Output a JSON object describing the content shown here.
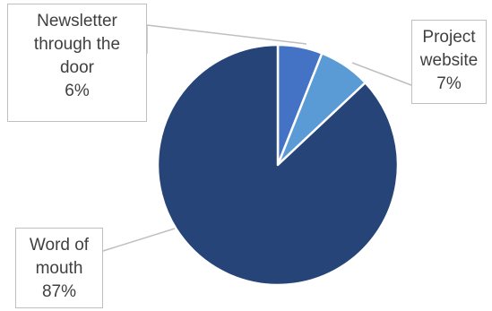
{
  "chart_data": {
    "type": "pie",
    "slices": [
      {
        "label_lines": [
          "Newsletter",
          "through the",
          "door"
        ],
        "percent_label": "6%",
        "value": 6,
        "color": "#4472c4"
      },
      {
        "label_lines": [
          "Project",
          "website"
        ],
        "percent_label": "7%",
        "value": 7,
        "color": "#5b9bd5"
      },
      {
        "label_lines": [
          "Word of",
          "mouth"
        ],
        "percent_label": "87%",
        "value": 87,
        "color": "#264478"
      }
    ],
    "leader_color": "#bfbfbf",
    "legend": "none"
  }
}
